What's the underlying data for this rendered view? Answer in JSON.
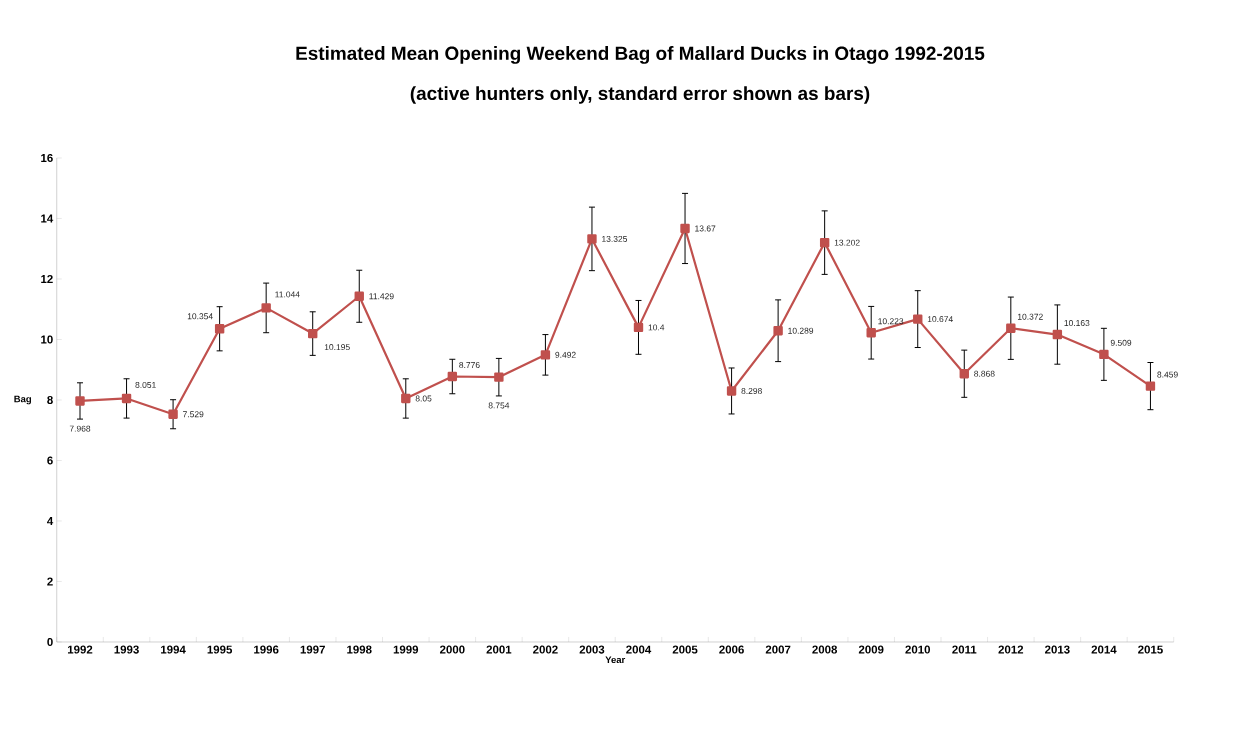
{
  "chart_data": {
    "type": "line",
    "title": "Estimated Mean Opening Weekend Bag of Mallard Ducks in Otago 1992-2015",
    "subtitle": "(active hunters only, standard error shown as bars)",
    "xlabel": "Year",
    "ylabel": "Bag",
    "categories": [
      "1992",
      "1993",
      "1994",
      "1995",
      "1996",
      "1997",
      "1998",
      "1999",
      "2000",
      "2001",
      "2002",
      "2003",
      "2004",
      "2005",
      "2006",
      "2007",
      "2008",
      "2009",
      "2010",
      "2011",
      "2012",
      "2013",
      "2014",
      "2015"
    ],
    "series": [
      {
        "color": "#c0504d",
        "values": [
          7.968,
          8.051,
          7.529,
          10.354,
          11.044,
          10.195,
          11.429,
          8.05,
          8.776,
          8.754,
          9.492,
          13.325,
          10.4,
          13.67,
          8.298,
          10.289,
          13.202,
          10.223,
          10.674,
          8.868,
          10.372,
          10.163,
          9.509,
          8.459
        ],
        "errors": [
          0.6,
          0.65,
          0.48,
          0.73,
          0.82,
          0.72,
          0.86,
          0.65,
          0.57,
          0.62,
          0.67,
          1.05,
          0.89,
          1.16,
          0.76,
          1.02,
          1.05,
          0.87,
          0.94,
          0.78,
          1.03,
          0.98,
          0.86,
          0.78
        ],
        "value_labels": [
          "7.968",
          "8.051",
          "7.529",
          "10.354",
          "11.044",
          "10.195",
          "11.429",
          "8.05",
          "8.776",
          "8.754",
          "9.492",
          "13.325",
          "10.4",
          "13.67",
          "8.298",
          "10.289",
          "13.202",
          "10.223",
          "10.674",
          "8.868",
          "10.372",
          "10.163",
          "9.509",
          "8.459"
        ]
      }
    ],
    "ylim": [
      0,
      16
    ],
    "yticks": [
      0,
      2,
      4,
      6,
      8,
      10,
      12,
      14,
      16
    ],
    "grid": false,
    "marker": "square",
    "line_style": "solid"
  }
}
